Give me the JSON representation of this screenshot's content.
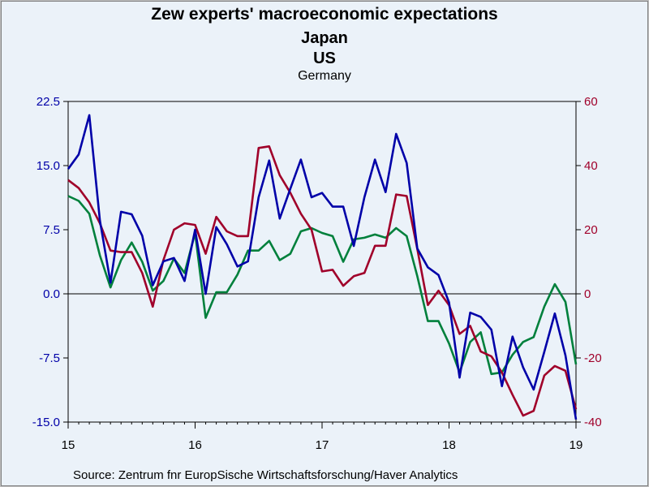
{
  "header": {
    "title": "Zew experts' macroeconomic expectations",
    "subtitle_japan": "Japan",
    "subtitle_us": "US",
    "subtitle_germany": "Germany"
  },
  "footer": {
    "source": "Source:  Zentrum fnr EuropSische Wirtschaftsforschung/Haver Analytics"
  },
  "colors": {
    "japan": "#0000a8",
    "us": "#a0002a",
    "germany": "#00803c",
    "left_axis": "#0000a8",
    "right_axis": "#a0002a",
    "plot_bg": "#ebf2f9"
  },
  "chart_data": {
    "type": "line",
    "title": "Zew experts' macroeconomic expectations",
    "x_tick_labels": [
      "15",
      "16",
      "17",
      "18",
      "19"
    ],
    "x_range": [
      "2015-01",
      "2019-01"
    ],
    "left_axis": {
      "ylim": [
        -15,
        22.5
      ],
      "tick_labels": [
        "22.5",
        "15.0",
        "7.5",
        "0.0",
        "-7.5",
        "-15.0"
      ],
      "tick_values": [
        22.5,
        15,
        7.5,
        0,
        -7.5,
        -15
      ]
    },
    "right_axis": {
      "ylim": [
        -40,
        60
      ],
      "tick_labels": [
        "60",
        "40",
        "20",
        "0",
        "-20",
        "-40"
      ],
      "tick_values": [
        60,
        40,
        20,
        0,
        -20,
        -40
      ]
    },
    "zero_line": true,
    "grid": false,
    "months": [
      "2015-01",
      "2015-02",
      "2015-03",
      "2015-04",
      "2015-05",
      "2015-06",
      "2015-07",
      "2015-08",
      "2015-09",
      "2015-10",
      "2015-11",
      "2015-12",
      "2016-01",
      "2016-02",
      "2016-03",
      "2016-04",
      "2016-05",
      "2016-06",
      "2016-07",
      "2016-08",
      "2016-09",
      "2016-10",
      "2016-11",
      "2016-12",
      "2017-01",
      "2017-02",
      "2017-03",
      "2017-04",
      "2017-05",
      "2017-06",
      "2017-07",
      "2017-08",
      "2017-09",
      "2017-10",
      "2017-11",
      "2017-12",
      "2018-01",
      "2018-02",
      "2018-03",
      "2018-04",
      "2018-05",
      "2018-06",
      "2018-07",
      "2018-08",
      "2018-09",
      "2018-10",
      "2018-11",
      "2018-12",
      "2019-01"
    ],
    "series": [
      {
        "name": "Japan",
        "axis": "left",
        "values": [
          14.6,
          16.3,
          20.9,
          8.6,
          1.3,
          9.6,
          9.3,
          6.8,
          1.0,
          3.8,
          4.2,
          1.5,
          7.5,
          0.0,
          7.8,
          5.8,
          3.2,
          3.8,
          11.3,
          15.6,
          8.8,
          12.3,
          15.7,
          11.3,
          11.8,
          10.2,
          10.2,
          5.6,
          11.3,
          15.7,
          11.9,
          18.7,
          15.3,
          5.3,
          3.1,
          2.2,
          -1.0,
          -9.8,
          -2.2,
          -2.7,
          -4.2,
          -10.8,
          -5.0,
          -8.6,
          -11.2,
          -6.8,
          -2.3,
          -7.2,
          -14.7
        ]
      },
      {
        "name": "US",
        "axis": "right",
        "values": [
          35.5,
          33.0,
          28.5,
          22.0,
          13.5,
          13.0,
          13.0,
          6.5,
          -4.0,
          10.5,
          20.0,
          22.0,
          21.5,
          12.5,
          24.0,
          19.5,
          18.0,
          18.0,
          45.5,
          46.0,
          37.0,
          31.5,
          25.0,
          20.0,
          7.0,
          7.5,
          2.5,
          5.5,
          6.5,
          15.0,
          15.0,
          31.0,
          30.5,
          14.0,
          -3.5,
          1.0,
          -3.5,
          -12.5,
          -10.0,
          -18.0,
          -19.5,
          -24.5,
          -31.5,
          -38.0,
          -36.5,
          -25.5,
          -22.5,
          -24.0,
          -36.0
        ]
      },
      {
        "name": "Germany",
        "axis": "right",
        "values": [
          30.5,
          29.0,
          25.0,
          12.0,
          2.0,
          10.5,
          16.0,
          10.0,
          1.0,
          4.0,
          11.0,
          6.5,
          19.0,
          -7.5,
          0.5,
          0.5,
          6.0,
          13.5,
          13.5,
          16.5,
          10.5,
          12.5,
          19.5,
          20.5,
          19.0,
          18.0,
          10.0,
          17.0,
          17.5,
          18.5,
          17.5,
          20.5,
          18.0,
          5.5,
          -8.5,
          -8.5,
          -15.5,
          -24.5,
          -15.0,
          -12.0,
          -25.0,
          -24.5,
          -19.0,
          -15.0,
          -13.5,
          -4.0,
          3.0,
          -2.5,
          -22.0
        ]
      }
    ]
  }
}
